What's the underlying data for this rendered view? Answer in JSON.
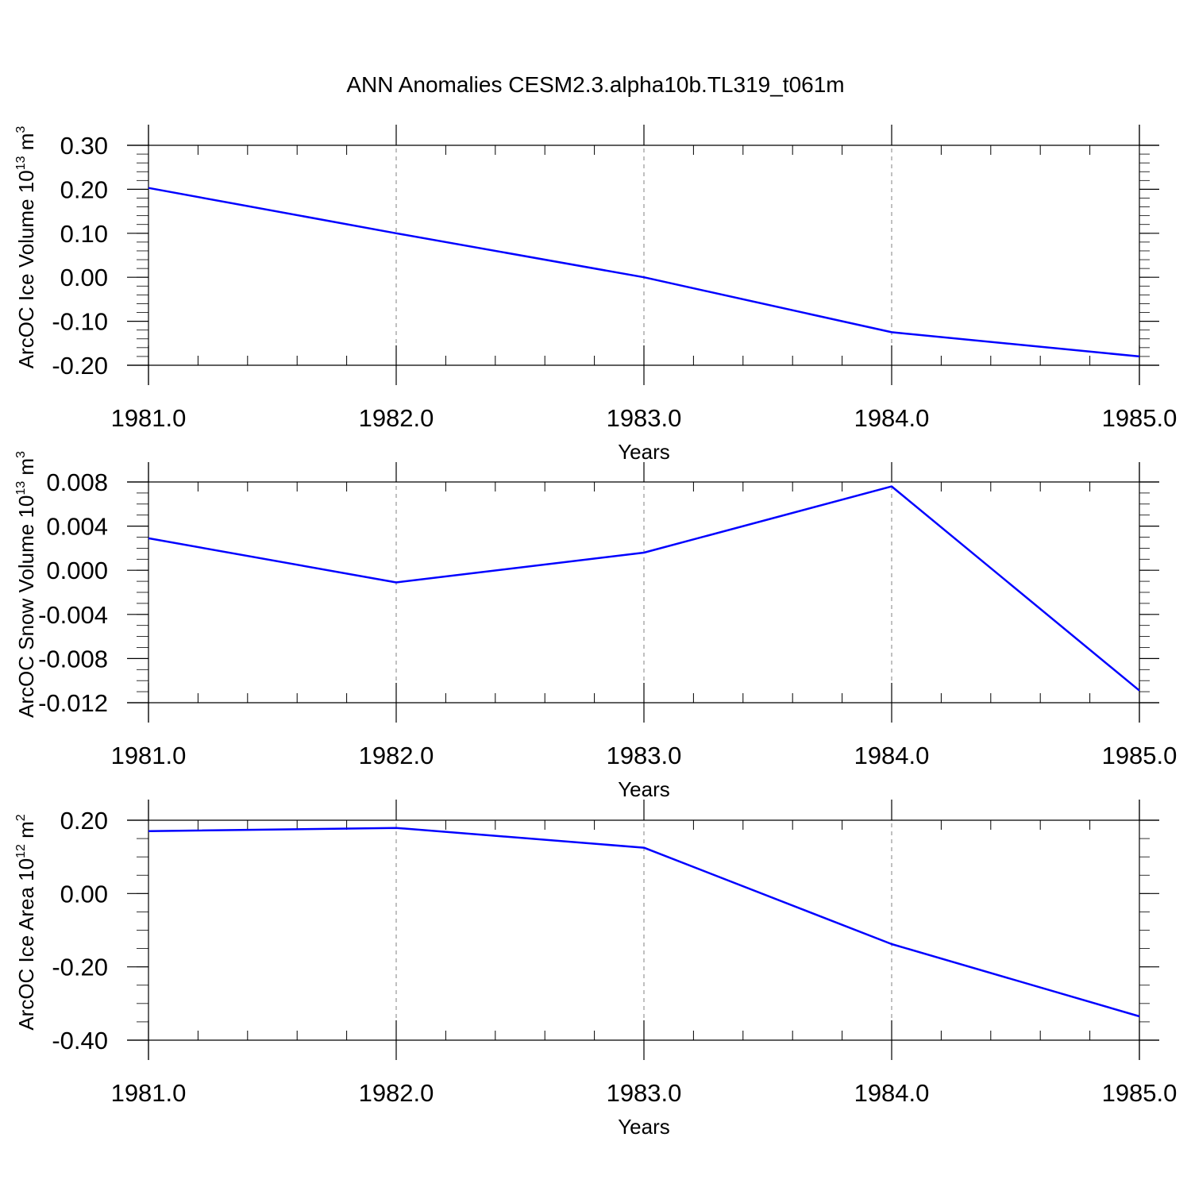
{
  "title": "ANN Anomalies CESM2.3.alpha10b.TL319_t061m",
  "colors": {
    "line": "#0000ff",
    "axis": "#000000",
    "grid": "#808080"
  },
  "chart_data": [
    {
      "type": "line",
      "xlabel": "Years",
      "ylabel": {
        "text": "ArcOC Ice Volume 10",
        "exponent": "13",
        "unit": "m",
        "unit_exponent": "3"
      },
      "x": [
        1981,
        1982,
        1983,
        1984,
        1985
      ],
      "x_ticks": [
        "1981.0",
        "1982.0",
        "1983.0",
        "1984.0",
        "1985.0"
      ],
      "xlim": [
        1981,
        1985
      ],
      "ylim": [
        -0.2,
        0.3
      ],
      "y_ticks": [
        0.3,
        0.2,
        0.1,
        0.0,
        -0.1,
        -0.2
      ],
      "y_tick_labels": [
        "0.30",
        "0.20",
        "0.10",
        "0.00",
        "-0.10",
        "-0.20"
      ],
      "y_minor_step": 0.02,
      "series": [
        {
          "values": [
            0.203,
            0.1,
            0.0,
            -0.125,
            -0.18
          ]
        }
      ],
      "grid": "vertical dashed at major x ticks"
    },
    {
      "type": "line",
      "xlabel": "Years",
      "ylabel": {
        "text": "ArcOC Snow Volume 10",
        "exponent": "13",
        "unit": "m",
        "unit_exponent": "3"
      },
      "x": [
        1981,
        1982,
        1983,
        1984,
        1985
      ],
      "x_ticks": [
        "1981.0",
        "1982.0",
        "1983.0",
        "1984.0",
        "1985.0"
      ],
      "xlim": [
        1981,
        1985
      ],
      "ylim": [
        -0.012,
        0.009
      ],
      "y_ticks": [
        0.008,
        0.004,
        0.0,
        -0.004,
        -0.008,
        -0.012
      ],
      "y_tick_labels": [
        "0.008",
        "0.004",
        "0.000",
        "-0.004",
        "-0.008",
        "-0.012"
      ],
      "y_minor_step": 0.001,
      "series": [
        {
          "values": [
            0.0029,
            -0.0011,
            0.0016,
            0.0076,
            -0.0109
          ]
        }
      ],
      "grid": "vertical dashed at major x ticks"
    },
    {
      "type": "line",
      "xlabel": "Years",
      "ylabel": {
        "text": "ArcOC Ice Area 10",
        "exponent": "12",
        "unit": "m",
        "unit_exponent": "2"
      },
      "x": [
        1981,
        1982,
        1983,
        1984,
        1985
      ],
      "x_ticks": [
        "1981.0",
        "1982.0",
        "1983.0",
        "1984.0",
        "1985.0"
      ],
      "xlim": [
        1981,
        1985
      ],
      "ylim": [
        -0.4,
        0.2
      ],
      "y_ticks": [
        0.2,
        0.0,
        -0.2,
        -0.4
      ],
      "y_tick_labels": [
        "0.20",
        "0.00",
        "-0.20",
        "-0.40"
      ],
      "y_minor_step": 0.05,
      "series": [
        {
          "values": [
            0.17,
            0.179,
            0.125,
            -0.138,
            -0.335
          ]
        }
      ],
      "grid": "vertical dashed at major x ticks"
    }
  ]
}
